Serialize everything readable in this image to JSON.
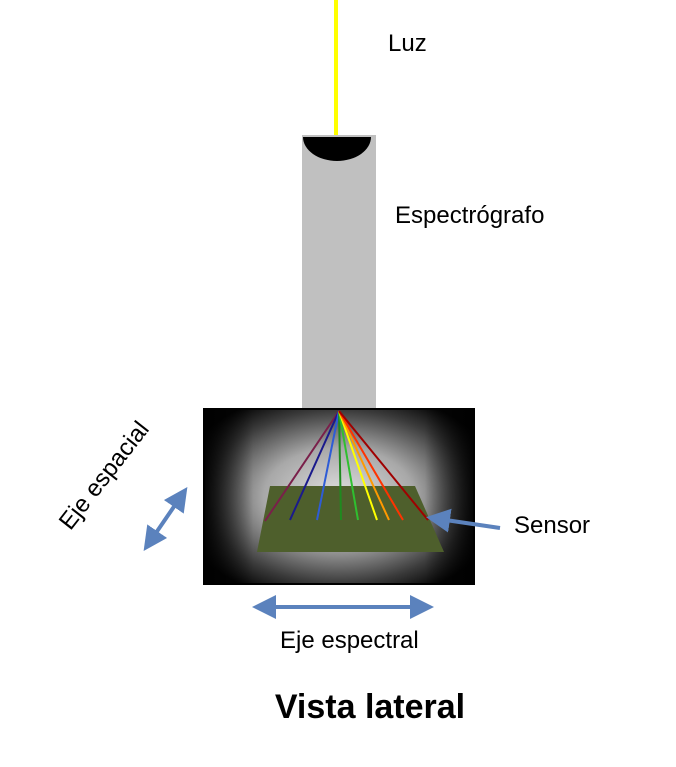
{
  "labels": {
    "light": "Luz",
    "spectrograph": "Espectrógrafo",
    "sensor": "Sensor",
    "spatial_axis": "Eje espacial",
    "spectral_axis": "Eje espectral",
    "view_title": "Vista lateral"
  },
  "colors": {
    "light_beam": "#ffff00",
    "spectrograph_body": "#c0c0c0",
    "lens": "#000000",
    "sensor_plate": "#4e5f2c",
    "arrows": "#5b82bd",
    "rays": [
      "#7a1f4a",
      "#1a1a8c",
      "#2e5cd6",
      "#1f8a1f",
      "#2fbf2f",
      "#ffff00",
      "#ff9900",
      "#ff3300",
      "#a00000"
    ]
  }
}
